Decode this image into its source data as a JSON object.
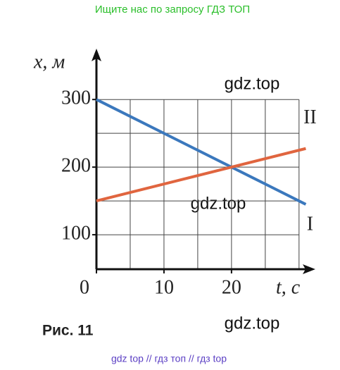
{
  "header": {
    "text": "Ищите нас по запросу ГДЗ ТОП"
  },
  "chart_data": {
    "type": "line",
    "ylabel": "x, м",
    "xlabel": "t, с",
    "x": [
      0,
      31
    ],
    "series": [
      {
        "name": "I",
        "color": "#3b78bd",
        "values": [
          300,
          145
        ]
      },
      {
        "name": "II",
        "color": "#e0653f",
        "values": [
          150,
          227.5
        ]
      }
    ],
    "xlim": [
      0,
      32
    ],
    "ylim": [
      49,
      369
    ],
    "xticks": [
      0,
      10,
      20
    ],
    "yticks": [
      100,
      200,
      300
    ],
    "xgrid": [
      5,
      10,
      15,
      20,
      25,
      30
    ],
    "ygrid": [
      50,
      100,
      150,
      200,
      250,
      300
    ],
    "grid": true
  },
  "watermarks": [
    "gdz.top",
    "gdz.top",
    "gdz.top"
  ],
  "caption": "Рис. 11",
  "footer": "gdz top  //  гдз топ  //  гдз top"
}
